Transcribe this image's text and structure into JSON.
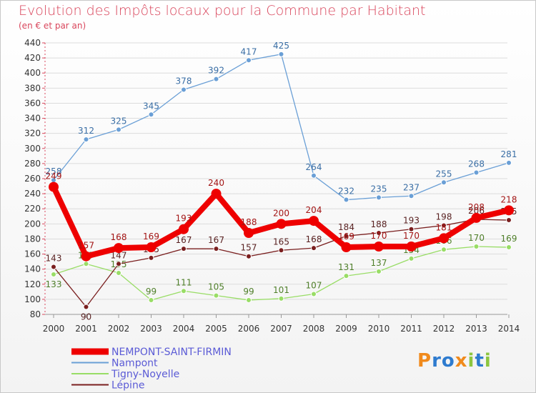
{
  "chart_data": {
    "type": "line",
    "title": "Evolution des Impôts locaux pour la Commune par Habitant",
    "subtitle": "(en € et par an)",
    "xlabel": "",
    "ylabel": "",
    "ylim": [
      80,
      440
    ],
    "yticks": [
      80,
      100,
      120,
      140,
      160,
      180,
      200,
      220,
      240,
      260,
      280,
      300,
      320,
      340,
      360,
      380,
      400,
      420,
      440
    ],
    "x": [
      "2000",
      "2001",
      "2002",
      "2003",
      "2004",
      "2005",
      "2006",
      "2007",
      "2008",
      "2009",
      "2010",
      "2011",
      "2012",
      "2013",
      "2014"
    ],
    "series": [
      {
        "name": "NEMPONT-SAINT-FIRMIN",
        "color": "#ee0000",
        "values": [
          249,
          157,
          168,
          169,
          193,
          240,
          188,
          200,
          204,
          169,
          170,
          170,
          181,
          208,
          218
        ]
      },
      {
        "name": "Nampont",
        "color": "#6a9fd6",
        "values": [
          258,
          312,
          325,
          345,
          378,
          392,
          417,
          425,
          264,
          232,
          235,
          237,
          255,
          268,
          281
        ]
      },
      {
        "name": "Tigny-Noyelle",
        "color": "#99dd66",
        "values": [
          133,
          147,
          135,
          99,
          111,
          105,
          99,
          101,
          107,
          131,
          137,
          154,
          166,
          170,
          169
        ]
      },
      {
        "name": "Lépine",
        "color": "#7a1f1f",
        "values": [
          143,
          90,
          147,
          155,
          167,
          167,
          157,
          165,
          168,
          184,
          188,
          193,
          198,
          206,
          205
        ]
      }
    ]
  },
  "logo": {
    "p": "P",
    "r": "r",
    "o": "o",
    "x": "x",
    "i": "i",
    "t": "t",
    "i2": "i"
  }
}
